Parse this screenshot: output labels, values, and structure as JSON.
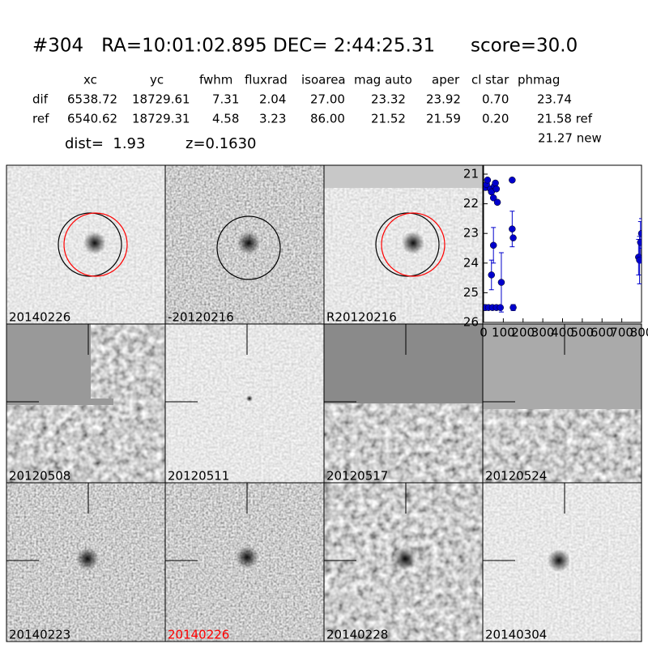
{
  "header": {
    "title": "#304   RA=10:01:02.895 DEC= 2:44:25.31      score=30.0"
  },
  "table": {
    "columns": [
      "xc",
      "yc",
      "fwhm",
      "fluxrad",
      "isoarea",
      "mag auto",
      "aper",
      "cl star",
      "phmag"
    ],
    "rows": [
      [
        "dif",
        "6538.72",
        "18729.61",
        "7.31",
        "2.04",
        "27.00",
        "23.32",
        "23.92",
        "0.70",
        "23.74"
      ],
      [
        "ref",
        "6540.62",
        "18729.31",
        "4.58",
        "3.23",
        "86.00",
        "21.52",
        "21.59",
        "0.20",
        "21.58 ref"
      ]
    ],
    "extra": "21.27 new",
    "dist": "dist=  1.93",
    "z": "z=0.1630"
  },
  "panels": [
    {
      "label": "20140226"
    },
    {
      "label": "-20120216"
    },
    {
      "label": "R20120216"
    },
    {
      "label": "20120508"
    },
    {
      "label": "20120511"
    },
    {
      "label": "20120517"
    },
    {
      "label": "20120524"
    },
    {
      "label": "20140223"
    },
    {
      "label": "20140226",
      "label_color": "#ff0000"
    },
    {
      "label": "20140228"
    },
    {
      "label": "20140304"
    }
  ],
  "lightcurve": {
    "type": "scatter",
    "color": "#0000cc",
    "xlim": [
      0,
      800
    ],
    "ylim": [
      20.7,
      26
    ],
    "xticks": [
      0,
      100,
      200,
      300,
      400,
      500,
      600,
      700,
      800
    ],
    "yticks": [
      21,
      22,
      23,
      24,
      25,
      26
    ],
    "x": [
      0,
      10,
      25,
      45,
      65,
      85,
      10,
      15,
      20,
      35,
      40,
      50,
      55,
      60,
      65,
      70,
      40,
      50,
      90,
      145,
      150,
      150,
      145,
      785,
      790,
      795,
      800
    ],
    "y": [
      25.5,
      25.5,
      25.5,
      25.5,
      25.5,
      25.5,
      21.45,
      21.35,
      21.2,
      21.5,
      21.6,
      21.8,
      21.4,
      21.3,
      21.5,
      21.95,
      24.4,
      23.4,
      24.65,
      22.85,
      23.15,
      25.5,
      21.2,
      23.8,
      23.9,
      23.3,
      23.0
    ],
    "err": [
      null,
      null,
      null,
      null,
      null,
      null,
      null,
      null,
      null,
      null,
      null,
      null,
      null,
      null,
      null,
      null,
      0.5,
      0.6,
      1.0,
      0.6,
      null,
      0.1,
      null,
      0.6,
      0.8,
      0.7,
      0.5
    ]
  }
}
